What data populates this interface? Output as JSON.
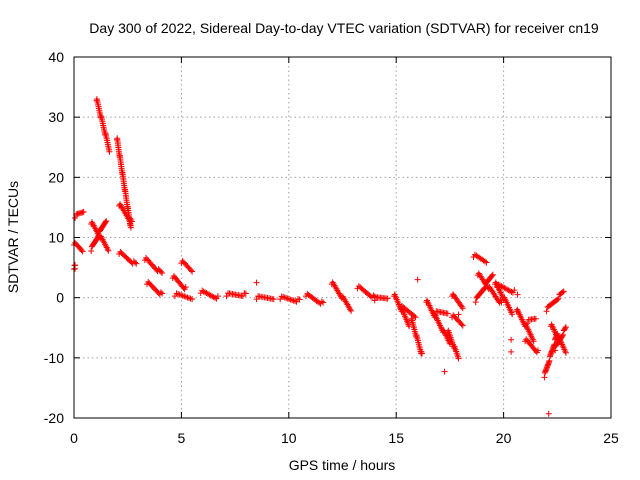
{
  "chart_data": {
    "type": "scatter",
    "title": "Day 300 of 2022, Sidereal Day-to-day VTEC variation (SDTVAR) for receiver cn19",
    "xlabel": "GPS time / hours",
    "ylabel": "SDTVAR / TECUs",
    "xlim": [
      0,
      25
    ],
    "ylim": [
      -20,
      40
    ],
    "xticks": [
      0,
      5,
      10,
      15,
      20,
      25
    ],
    "yticks": [
      -20,
      -10,
      0,
      10,
      20,
      30,
      40
    ],
    "xtick_labels": [
      "0",
      "5",
      "10",
      "15",
      "20",
      "25"
    ],
    "ytick_labels": [
      "-20",
      "-10",
      "0",
      "10",
      "20",
      "30",
      "40"
    ],
    "grid": true,
    "marker": "+",
    "color": "#ff0000",
    "segments": [
      {
        "x": [
          0.0,
          0.05
        ],
        "y": [
          5.0,
          5.2
        ]
      },
      {
        "x": [
          0.0,
          0.4
        ],
        "y": [
          9.0,
          7.8
        ]
      },
      {
        "x": [
          0.05,
          0.45
        ],
        "y": [
          13.5,
          14.3
        ]
      },
      {
        "x": [
          0.8,
          1.5
        ],
        "y": [
          8.0,
          13.0
        ]
      },
      {
        "x": [
          0.8,
          1.6
        ],
        "y": [
          12.5,
          8.0
        ]
      },
      {
        "x": [
          1.05,
          1.65
        ],
        "y": [
          33.0,
          24.5
        ]
      },
      {
        "x": [
          2.0,
          2.65
        ],
        "y": [
          26.5,
          11.5
        ]
      },
      {
        "x": [
          2.1,
          2.7
        ],
        "y": [
          15.5,
          12.5
        ]
      },
      {
        "x": [
          2.1,
          2.9
        ],
        "y": [
          7.5,
          5.5
        ]
      },
      {
        "x": [
          3.3,
          4.1
        ],
        "y": [
          6.5,
          4.0
        ]
      },
      {
        "x": [
          3.4,
          4.1
        ],
        "y": [
          2.5,
          0.5
        ]
      },
      {
        "x": [
          4.6,
          5.2
        ],
        "y": [
          3.5,
          1.5
        ]
      },
      {
        "x": [
          4.7,
          5.5
        ],
        "y": [
          0.5,
          0.0
        ]
      },
      {
        "x": [
          5.0,
          5.5
        ],
        "y": [
          6.0,
          4.5
        ]
      },
      {
        "x": [
          5.9,
          6.7
        ],
        "y": [
          1.0,
          0.0
        ]
      },
      {
        "x": [
          7.1,
          8.0
        ],
        "y": [
          0.5,
          0.5
        ]
      },
      {
        "x": [
          8.5,
          9.3
        ],
        "y": [
          0.0,
          0.0
        ]
      },
      {
        "x": [
          9.6,
          10.5
        ],
        "y": [
          0.0,
          -0.5
        ]
      },
      {
        "x": [
          10.8,
          11.6
        ],
        "y": [
          0.5,
          -1.0
        ]
      },
      {
        "x": [
          12.0,
          12.9
        ],
        "y": [
          2.5,
          -2.0
        ]
      },
      {
        "x": [
          13.2,
          14.0
        ],
        "y": [
          1.8,
          0.0
        ]
      },
      {
        "x": [
          14.0,
          14.6
        ],
        "y": [
          -0.2,
          0.0
        ]
      },
      {
        "x": [
          14.9,
          15.6
        ],
        "y": [
          0.5,
          -4.5
        ]
      },
      {
        "x": [
          15.2,
          15.9
        ],
        "y": [
          -1.5,
          -3.0
        ]
      },
      {
        "x": [
          15.7,
          16.2
        ],
        "y": [
          -3.5,
          -9.5
        ]
      },
      {
        "x": [
          16.4,
          17.5
        ],
        "y": [
          -0.5,
          -7.5
        ]
      },
      {
        "x": [
          16.8,
          17.4
        ],
        "y": [
          -2.5,
          -2.5
        ]
      },
      {
        "x": [
          17.4,
          17.9
        ],
        "y": [
          -5.5,
          -10.0
        ]
      },
      {
        "x": [
          17.6,
          18.1
        ],
        "y": [
          -3.0,
          -4.5
        ]
      },
      {
        "x": [
          17.6,
          18.1
        ],
        "y": [
          0.5,
          -1.5
        ]
      },
      {
        "x": [
          18.6,
          19.2
        ],
        "y": [
          7.0,
          6.0
        ]
      },
      {
        "x": [
          18.7,
          19.5
        ],
        "y": [
          -0.5,
          4.0
        ]
      },
      {
        "x": [
          18.8,
          19.9
        ],
        "y": [
          4.0,
          -1.0
        ]
      },
      {
        "x": [
          19.6,
          20.4
        ],
        "y": [
          2.5,
          -2.5
        ]
      },
      {
        "x": [
          19.7,
          20.5
        ],
        "y": [
          2.0,
          1.0
        ]
      },
      {
        "x": [
          20.6,
          21.4
        ],
        "y": [
          -2.0,
          -7.0
        ]
      },
      {
        "x": [
          21.1,
          21.5
        ],
        "y": [
          -4.0,
          -3.5
        ]
      },
      {
        "x": [
          21.0,
          21.6
        ],
        "y": [
          -7.0,
          -9.0
        ]
      },
      {
        "x": [
          21.9,
          22.5
        ],
        "y": [
          -13.0,
          -6.0
        ]
      },
      {
        "x": [
          22.0,
          22.8
        ],
        "y": [
          -2.0,
          1.0
        ]
      },
      {
        "x": [
          22.2,
          22.9
        ],
        "y": [
          -4.5,
          -9.0
        ]
      },
      {
        "x": [
          22.4,
          22.9
        ],
        "y": [
          -8.5,
          -5.0
        ]
      }
    ],
    "singles": [
      {
        "x": 0.05,
        "y": 4.8
      },
      {
        "x": 8.5,
        "y": 2.5
      },
      {
        "x": 16.0,
        "y": 3.0
      },
      {
        "x": 17.25,
        "y": -12.3
      },
      {
        "x": 17.9,
        "y": -2.8
      },
      {
        "x": 20.35,
        "y": -7.0
      },
      {
        "x": 20.35,
        "y": -9.0
      },
      {
        "x": 20.65,
        "y": 0.5
      },
      {
        "x": 22.1,
        "y": -19.3
      }
    ]
  }
}
